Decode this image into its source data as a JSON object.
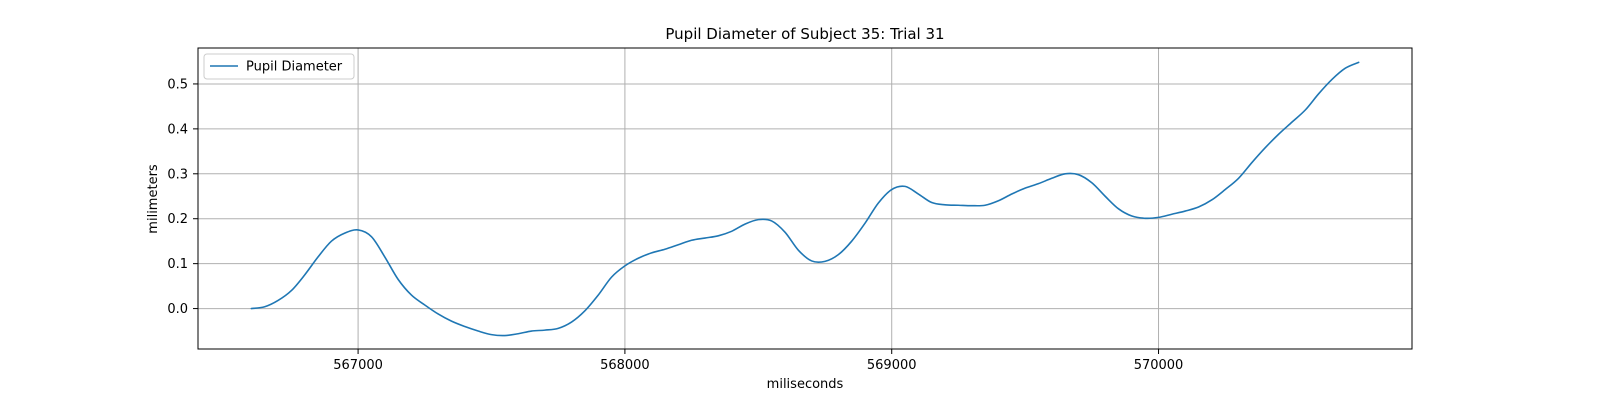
{
  "chart_data": {
    "type": "line",
    "title": "Pupil Diameter of Subject 35: Trial 31",
    "xlabel": "miliseconds",
    "ylabel": "milimeters",
    "xlim": [
      566400,
      570950
    ],
    "ylim": [
      -0.09,
      0.58
    ],
    "xticks": [
      567000,
      568000,
      569000,
      570000
    ],
    "yticks": [
      0.0,
      0.1,
      0.2,
      0.3,
      0.4,
      0.5
    ],
    "xtick_labels": [
      "567000",
      "568000",
      "569000",
      "570000"
    ],
    "ytick_labels": [
      "0.0",
      "0.1",
      "0.2",
      "0.3",
      "0.4",
      "0.5"
    ],
    "grid": true,
    "legend_position": "top-left",
    "colors": {
      "series": "#1f77b4",
      "grid": "#b0b0b0",
      "axes": "#000000"
    },
    "series": [
      {
        "name": "Pupil Diameter",
        "x": [
          566600,
          566650,
          566700,
          566750,
          566800,
          566850,
          566900,
          566950,
          567000,
          567050,
          567100,
          567150,
          567200,
          567250,
          567300,
          567350,
          567400,
          567450,
          567500,
          567550,
          567600,
          567650,
          567700,
          567750,
          567800,
          567850,
          567900,
          567950,
          568000,
          568050,
          568100,
          568150,
          568200,
          568250,
          568300,
          568350,
          568400,
          568450,
          568500,
          568550,
          568600,
          568650,
          568700,
          568750,
          568800,
          568850,
          568900,
          568950,
          569000,
          569050,
          569100,
          569150,
          569200,
          569250,
          569300,
          569350,
          569400,
          569450,
          569500,
          569550,
          569600,
          569650,
          569700,
          569750,
          569800,
          569850,
          569900,
          569950,
          570000,
          570050,
          570100,
          570150,
          570200,
          570250,
          570300,
          570350,
          570400,
          570450,
          570500,
          570550,
          570600,
          570650,
          570700,
          570750
        ],
        "y": [
          0.0,
          0.004,
          0.018,
          0.04,
          0.075,
          0.115,
          0.15,
          0.168,
          0.175,
          0.16,
          0.115,
          0.065,
          0.03,
          0.008,
          -0.012,
          -0.028,
          -0.04,
          -0.05,
          -0.058,
          -0.06,
          -0.056,
          -0.05,
          -0.048,
          -0.044,
          -0.03,
          -0.005,
          0.03,
          0.07,
          0.095,
          0.112,
          0.124,
          0.132,
          0.142,
          0.152,
          0.157,
          0.162,
          0.172,
          0.188,
          0.198,
          0.195,
          0.17,
          0.13,
          0.106,
          0.105,
          0.12,
          0.15,
          0.19,
          0.235,
          0.265,
          0.272,
          0.255,
          0.236,
          0.231,
          0.23,
          0.229,
          0.23,
          0.24,
          0.255,
          0.268,
          0.278,
          0.29,
          0.3,
          0.298,
          0.28,
          0.25,
          0.222,
          0.206,
          0.201,
          0.203,
          0.21,
          0.217,
          0.226,
          0.242,
          0.265,
          0.29,
          0.325,
          0.358,
          0.388,
          0.415,
          0.442,
          0.478,
          0.51,
          0.535,
          0.548
        ]
      }
    ]
  }
}
